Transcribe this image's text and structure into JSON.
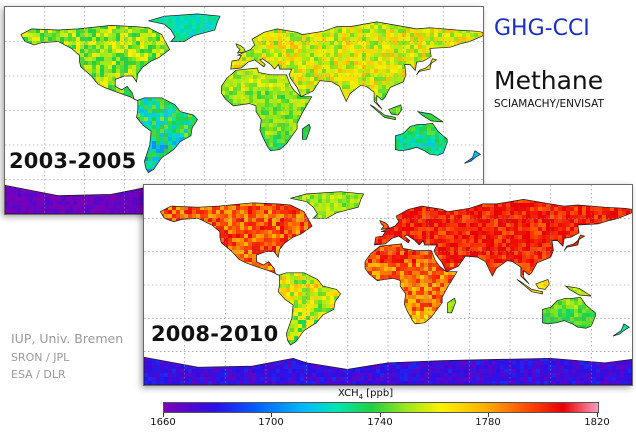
{
  "title": {
    "project": "GHG-CCI",
    "gas": "Methane",
    "instrument": "SCIAMACHY/ENVISAT"
  },
  "maps": [
    {
      "period": "2003-2005",
      "overall_level": "low"
    },
    {
      "period": "2008-2010",
      "overall_level": "high"
    }
  ],
  "credits": [
    "IUP, Univ. Bremen",
    "SRON / JPL",
    "ESA / DLR"
  ],
  "colorbar": {
    "label_main": "XCH",
    "label_sub": "4",
    "label_unit": " [ppb]",
    "min": 1660,
    "max": 1820,
    "ticks": [
      "1660",
      "1700",
      "1740",
      "1780",
      "1820"
    ],
    "colors": [
      "#7a00b8",
      "#2a10e8",
      "#0066ff",
      "#00b8ff",
      "#00e6b0",
      "#22d040",
      "#9ee81a",
      "#fff000",
      "#ffb000",
      "#ff4800",
      "#e80000"
    ]
  },
  "colors": {
    "ocean": "#ffffff",
    "grid": "#8a8a8a",
    "border": "#1a1a1a",
    "title_blue": "#1a2ec2",
    "credit_gray": "#9a9a9a"
  }
}
